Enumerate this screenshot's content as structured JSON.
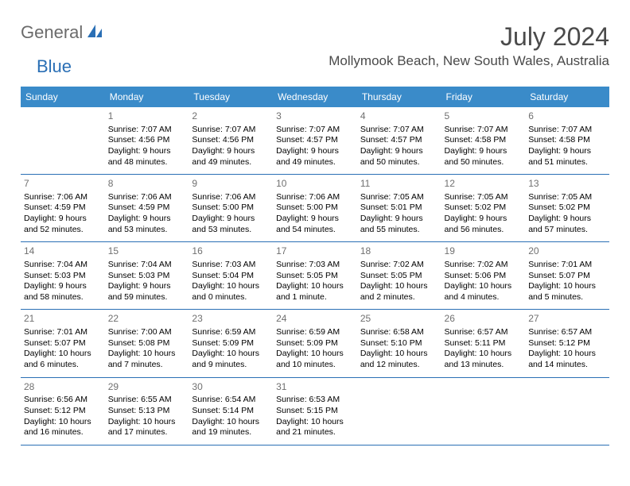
{
  "logo": {
    "text1": "General",
    "text2": "Blue"
  },
  "title": "July 2024",
  "location": "Mollymook Beach, New South Wales, Australia",
  "colors": {
    "header_bg": "#3a8bc9",
    "header_text": "#ffffff",
    "border": "#2a6fb5",
    "daynum": "#707070",
    "title_color": "#4a4a4a",
    "logo_gray": "#6b6b6b",
    "logo_blue": "#2a6fb5"
  },
  "day_headers": [
    "Sunday",
    "Monday",
    "Tuesday",
    "Wednesday",
    "Thursday",
    "Friday",
    "Saturday"
  ],
  "weeks": [
    [
      null,
      {
        "n": "1",
        "sr": "Sunrise: 7:07 AM",
        "ss": "Sunset: 4:56 PM",
        "dl": "Daylight: 9 hours and 48 minutes."
      },
      {
        "n": "2",
        "sr": "Sunrise: 7:07 AM",
        "ss": "Sunset: 4:56 PM",
        "dl": "Daylight: 9 hours and 49 minutes."
      },
      {
        "n": "3",
        "sr": "Sunrise: 7:07 AM",
        "ss": "Sunset: 4:57 PM",
        "dl": "Daylight: 9 hours and 49 minutes."
      },
      {
        "n": "4",
        "sr": "Sunrise: 7:07 AM",
        "ss": "Sunset: 4:57 PM",
        "dl": "Daylight: 9 hours and 50 minutes."
      },
      {
        "n": "5",
        "sr": "Sunrise: 7:07 AM",
        "ss": "Sunset: 4:58 PM",
        "dl": "Daylight: 9 hours and 50 minutes."
      },
      {
        "n": "6",
        "sr": "Sunrise: 7:07 AM",
        "ss": "Sunset: 4:58 PM",
        "dl": "Daylight: 9 hours and 51 minutes."
      }
    ],
    [
      {
        "n": "7",
        "sr": "Sunrise: 7:06 AM",
        "ss": "Sunset: 4:59 PM",
        "dl": "Daylight: 9 hours and 52 minutes."
      },
      {
        "n": "8",
        "sr": "Sunrise: 7:06 AM",
        "ss": "Sunset: 4:59 PM",
        "dl": "Daylight: 9 hours and 53 minutes."
      },
      {
        "n": "9",
        "sr": "Sunrise: 7:06 AM",
        "ss": "Sunset: 5:00 PM",
        "dl": "Daylight: 9 hours and 53 minutes."
      },
      {
        "n": "10",
        "sr": "Sunrise: 7:06 AM",
        "ss": "Sunset: 5:00 PM",
        "dl": "Daylight: 9 hours and 54 minutes."
      },
      {
        "n": "11",
        "sr": "Sunrise: 7:05 AM",
        "ss": "Sunset: 5:01 PM",
        "dl": "Daylight: 9 hours and 55 minutes."
      },
      {
        "n": "12",
        "sr": "Sunrise: 7:05 AM",
        "ss": "Sunset: 5:02 PM",
        "dl": "Daylight: 9 hours and 56 minutes."
      },
      {
        "n": "13",
        "sr": "Sunrise: 7:05 AM",
        "ss": "Sunset: 5:02 PM",
        "dl": "Daylight: 9 hours and 57 minutes."
      }
    ],
    [
      {
        "n": "14",
        "sr": "Sunrise: 7:04 AM",
        "ss": "Sunset: 5:03 PM",
        "dl": "Daylight: 9 hours and 58 minutes."
      },
      {
        "n": "15",
        "sr": "Sunrise: 7:04 AM",
        "ss": "Sunset: 5:03 PM",
        "dl": "Daylight: 9 hours and 59 minutes."
      },
      {
        "n": "16",
        "sr": "Sunrise: 7:03 AM",
        "ss": "Sunset: 5:04 PM",
        "dl": "Daylight: 10 hours and 0 minutes."
      },
      {
        "n": "17",
        "sr": "Sunrise: 7:03 AM",
        "ss": "Sunset: 5:05 PM",
        "dl": "Daylight: 10 hours and 1 minute."
      },
      {
        "n": "18",
        "sr": "Sunrise: 7:02 AM",
        "ss": "Sunset: 5:05 PM",
        "dl": "Daylight: 10 hours and 2 minutes."
      },
      {
        "n": "19",
        "sr": "Sunrise: 7:02 AM",
        "ss": "Sunset: 5:06 PM",
        "dl": "Daylight: 10 hours and 4 minutes."
      },
      {
        "n": "20",
        "sr": "Sunrise: 7:01 AM",
        "ss": "Sunset: 5:07 PM",
        "dl": "Daylight: 10 hours and 5 minutes."
      }
    ],
    [
      {
        "n": "21",
        "sr": "Sunrise: 7:01 AM",
        "ss": "Sunset: 5:07 PM",
        "dl": "Daylight: 10 hours and 6 minutes."
      },
      {
        "n": "22",
        "sr": "Sunrise: 7:00 AM",
        "ss": "Sunset: 5:08 PM",
        "dl": "Daylight: 10 hours and 7 minutes."
      },
      {
        "n": "23",
        "sr": "Sunrise: 6:59 AM",
        "ss": "Sunset: 5:09 PM",
        "dl": "Daylight: 10 hours and 9 minutes."
      },
      {
        "n": "24",
        "sr": "Sunrise: 6:59 AM",
        "ss": "Sunset: 5:09 PM",
        "dl": "Daylight: 10 hours and 10 minutes."
      },
      {
        "n": "25",
        "sr": "Sunrise: 6:58 AM",
        "ss": "Sunset: 5:10 PM",
        "dl": "Daylight: 10 hours and 12 minutes."
      },
      {
        "n": "26",
        "sr": "Sunrise: 6:57 AM",
        "ss": "Sunset: 5:11 PM",
        "dl": "Daylight: 10 hours and 13 minutes."
      },
      {
        "n": "27",
        "sr": "Sunrise: 6:57 AM",
        "ss": "Sunset: 5:12 PM",
        "dl": "Daylight: 10 hours and 14 minutes."
      }
    ],
    [
      {
        "n": "28",
        "sr": "Sunrise: 6:56 AM",
        "ss": "Sunset: 5:12 PM",
        "dl": "Daylight: 10 hours and 16 minutes."
      },
      {
        "n": "29",
        "sr": "Sunrise: 6:55 AM",
        "ss": "Sunset: 5:13 PM",
        "dl": "Daylight: 10 hours and 17 minutes."
      },
      {
        "n": "30",
        "sr": "Sunrise: 6:54 AM",
        "ss": "Sunset: 5:14 PM",
        "dl": "Daylight: 10 hours and 19 minutes."
      },
      {
        "n": "31",
        "sr": "Sunrise: 6:53 AM",
        "ss": "Sunset: 5:15 PM",
        "dl": "Daylight: 10 hours and 21 minutes."
      },
      null,
      null,
      null
    ]
  ]
}
